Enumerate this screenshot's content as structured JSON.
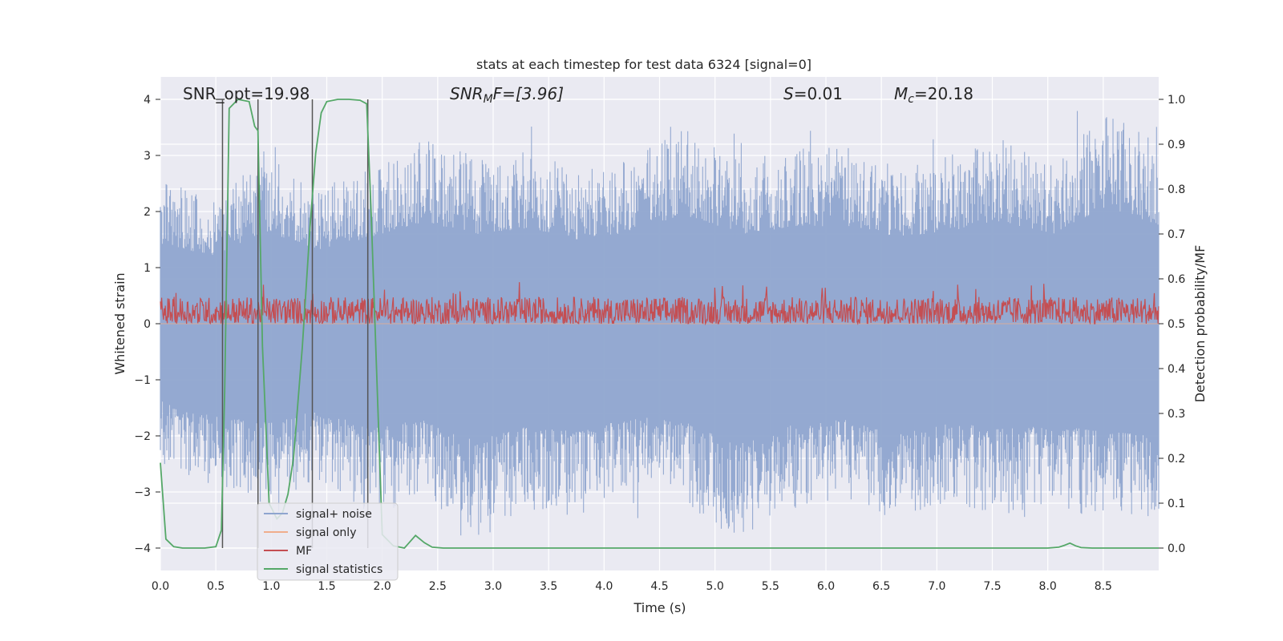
{
  "chart_data": {
    "type": "line",
    "title": "stats at each timestep for test data 6324 [signal=0]",
    "xlabel": "Time (s)",
    "ylabel": "Whitened strain",
    "y2label": "Detection probability/MF",
    "xlim": [
      0.0,
      9.0
    ],
    "ylim": [
      -4.4,
      4.4
    ],
    "y2lim": [
      -0.05,
      1.05
    ],
    "xticks": [
      "0.0",
      "0.5",
      "1.0",
      "1.5",
      "2.0",
      "2.5",
      "3.0",
      "3.5",
      "4.0",
      "4.5",
      "5.0",
      "5.5",
      "6.0",
      "6.5",
      "7.0",
      "7.5",
      "8.0",
      "8.5"
    ],
    "yticks": [
      "4",
      "3",
      "2",
      "1",
      "0",
      "−1",
      "−2",
      "−3",
      "−4"
    ],
    "y2ticks": [
      "1.0",
      "0.9",
      "0.8",
      "0.7",
      "0.6",
      "0.5",
      "0.4",
      "0.3",
      "0.2",
      "0.1",
      "0.0"
    ],
    "grid": true,
    "annotations": [
      {
        "id": "snr-opt",
        "text": "SNR_opt=19.98"
      },
      {
        "id": "snr-mf",
        "base": "SNR",
        "sub": "M",
        "rest": "F=[3.96]"
      },
      {
        "id": "s",
        "base": "S",
        "rest": "=0.01"
      },
      {
        "id": "mc",
        "base": "M",
        "sub": "c",
        "rest": "=20.18"
      }
    ],
    "legend": {
      "placement": "bottom-left",
      "entries": [
        {
          "label": "signal+ noise",
          "color": "#8fa5cf"
        },
        {
          "label": "signal only",
          "color": "#f0ad8c"
        },
        {
          "label": "MF",
          "color": "#c44e52"
        },
        {
          "label": "signal statistics",
          "color": "#55a868"
        }
      ]
    },
    "series": [
      {
        "name": "signal+ noise",
        "axis": "left",
        "description": "dense whitened noise, approx. -4 to 4",
        "envelope_upper": [
          2.6,
          2.2,
          3.0,
          2.4,
          2.8,
          3.3,
          2.9,
          3.1,
          2.7,
          3.0,
          3.5,
          2.9,
          3.1,
          3.2,
          2.8,
          3.0,
          3.3,
          2.9,
          3.8,
          3.2
        ],
        "envelope_lower": [
          -2.5,
          -3.0,
          -3.2,
          -2.8,
          -3.4,
          -3.1,
          -3.8,
          -3.3,
          -3.5,
          -3.0,
          -3.2,
          -3.9,
          -3.3,
          -3.1,
          -3.6,
          -3.2,
          -3.4,
          -3.3,
          -3.5,
          -3.6
        ]
      },
      {
        "name": "signal only",
        "axis": "left",
        "x": [
          0.0,
          9.0
        ],
        "y": [
          0.0,
          0.0
        ]
      },
      {
        "name": "MF",
        "axis": "right",
        "description": "matched-filter output, approx. 0.5 to 0.6"
      },
      {
        "name": "signal statistics",
        "axis": "right",
        "x": [
          0.0,
          0.05,
          0.12,
          0.2,
          0.3,
          0.4,
          0.5,
          0.55,
          0.58,
          0.62,
          0.7,
          0.8,
          0.85,
          0.88,
          0.92,
          0.98,
          1.05,
          1.1,
          1.15,
          1.2,
          1.28,
          1.35,
          1.4,
          1.45,
          1.5,
          1.6,
          1.7,
          1.8,
          1.86,
          1.9,
          2.0,
          2.1,
          2.2,
          2.3,
          2.38,
          2.45,
          2.55,
          3.0,
          4.0,
          5.0,
          6.0,
          7.0,
          8.0,
          8.1,
          8.15,
          8.2,
          8.25,
          8.3,
          8.4,
          9.0
        ],
        "y": [
          0.19,
          0.02,
          0.003,
          0.0,
          0.0,
          0.0,
          0.003,
          0.04,
          0.35,
          0.98,
          1.0,
          0.995,
          0.94,
          0.93,
          0.45,
          0.1,
          0.065,
          0.078,
          0.12,
          0.2,
          0.45,
          0.72,
          0.88,
          0.97,
          0.995,
          1.0,
          1.0,
          0.998,
          0.99,
          0.75,
          0.03,
          0.005,
          0.0,
          0.028,
          0.012,
          0.002,
          0.0,
          0.0,
          0.0,
          0.0,
          0.0,
          0.0,
          0.0,
          0.002,
          0.006,
          0.011,
          0.005,
          0.001,
          0.0,
          0.0
        ]
      }
    ],
    "vertical_markers_x": [
      0.56,
      0.88,
      1.37,
      1.87
    ]
  }
}
